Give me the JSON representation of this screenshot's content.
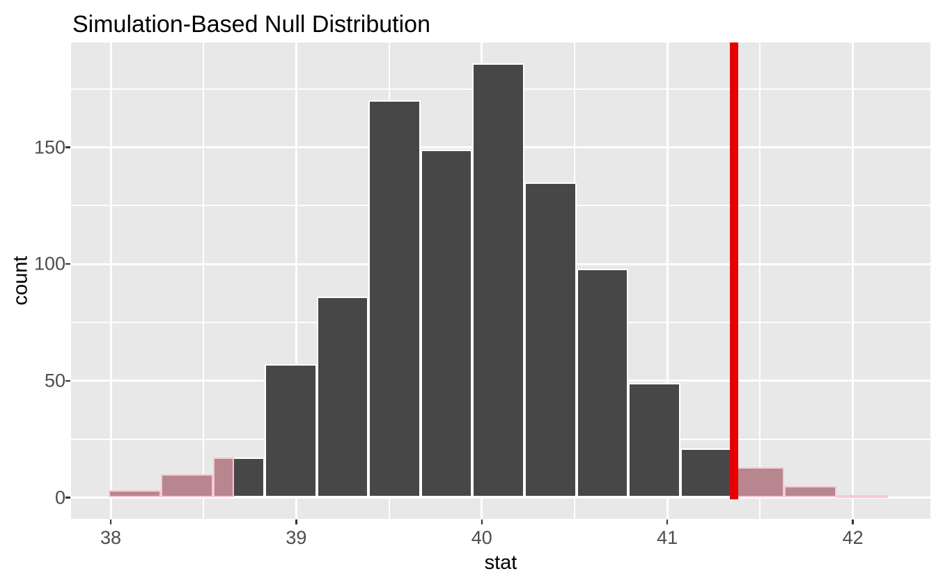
{
  "title": "Simulation-Based Null Distribution",
  "x_axis": {
    "label": "stat",
    "tick_labels": [
      "38",
      "39",
      "40",
      "41",
      "42"
    ],
    "tick_values": [
      38,
      39,
      40,
      41,
      42
    ],
    "minor_tick_values": [
      38.5,
      39.5,
      40.5,
      41.5
    ]
  },
  "y_axis": {
    "label": "count",
    "tick_labels": [
      "0",
      "50",
      "100",
      "150"
    ],
    "tick_values": [
      0,
      50,
      100,
      150
    ],
    "minor_tick_values": [
      25,
      75,
      125,
      175
    ]
  },
  "chart_data": {
    "type": "bar",
    "subtype": "histogram",
    "title": "Simulation-Based Null Distribution",
    "xlabel": "stat",
    "ylabel": "count",
    "bin_edges": [
      37.99,
      38.27,
      38.55,
      38.83,
      39.11,
      39.39,
      39.67,
      39.95,
      40.23,
      40.51,
      40.79,
      41.07,
      41.35,
      41.63,
      41.91,
      42.19
    ],
    "counts": [
      3,
      10,
      17,
      57,
      86,
      170,
      149,
      186,
      135,
      98,
      49,
      21,
      13,
      5,
      1
    ],
    "total_simulations": 1000,
    "observed_stat": 41.36,
    "two_sided_left_boundary": 38.665,
    "shaded_region": "two-sided p-value tails",
    "xlim": [
      37.79,
      42.41
    ],
    "ylim": [
      0,
      195
    ],
    "grid": "on",
    "legend": "none",
    "colors": {
      "bar": "#474747",
      "bar_border": "#FFFFFF",
      "tail_fill": "#B7868F",
      "tail_border": "#F7C9D2",
      "observed_line": "#E60000",
      "panel_bg": "#E8E8E8",
      "grid": "#FFFFFF",
      "tick_text": "#4D4D4D",
      "title_text": "#000000"
    }
  }
}
